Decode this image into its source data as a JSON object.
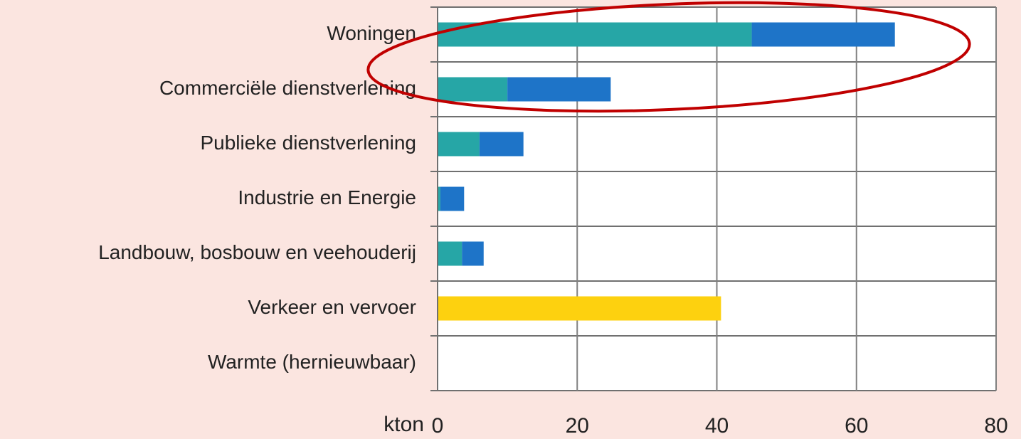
{
  "chart_data": {
    "type": "stacked_barh",
    "categories": [
      "Woningen",
      "Commerciële dienstverlening",
      "Publieke dienstverlening",
      "Industrie en Energie",
      "Landbouw, bosbouw en veehouderij",
      "Verkeer en vervoer",
      "Warmte (hernieuwbaar)"
    ],
    "series": [
      {
        "color": "#26a6a6",
        "values": [
          45,
          10,
          6,
          0.4,
          3.5,
          null,
          null
        ]
      },
      {
        "color": "#1e74c8",
        "values": [
          20.5,
          14.8,
          6.3,
          3.4,
          3.1,
          null,
          null
        ]
      },
      {
        "color": "#fdd10f",
        "values": [
          null,
          null,
          null,
          null,
          null,
          40.6,
          null
        ]
      }
    ],
    "xlabel": "kton",
    "xlim": [
      0,
      80
    ],
    "xticks": [
      0,
      20,
      40,
      60,
      80
    ],
    "grid": true
  }
}
